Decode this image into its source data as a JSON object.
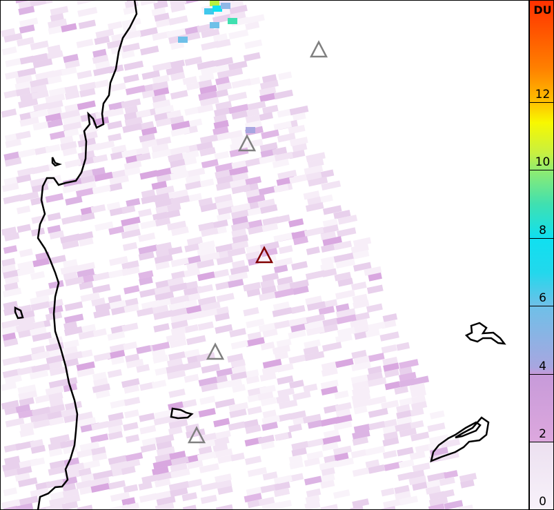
{
  "colorbar": {
    "unit": "DU",
    "ticks": [
      "0",
      "2",
      "4",
      "6",
      "8",
      "10",
      "12"
    ],
    "range": [
      0,
      15
    ]
  },
  "markers": {
    "gray_color": "#808080",
    "highlight_color": "#800000",
    "gray_icon": "triangle-outline-icon",
    "highlight_icon": "triangle-outline-icon"
  }
}
